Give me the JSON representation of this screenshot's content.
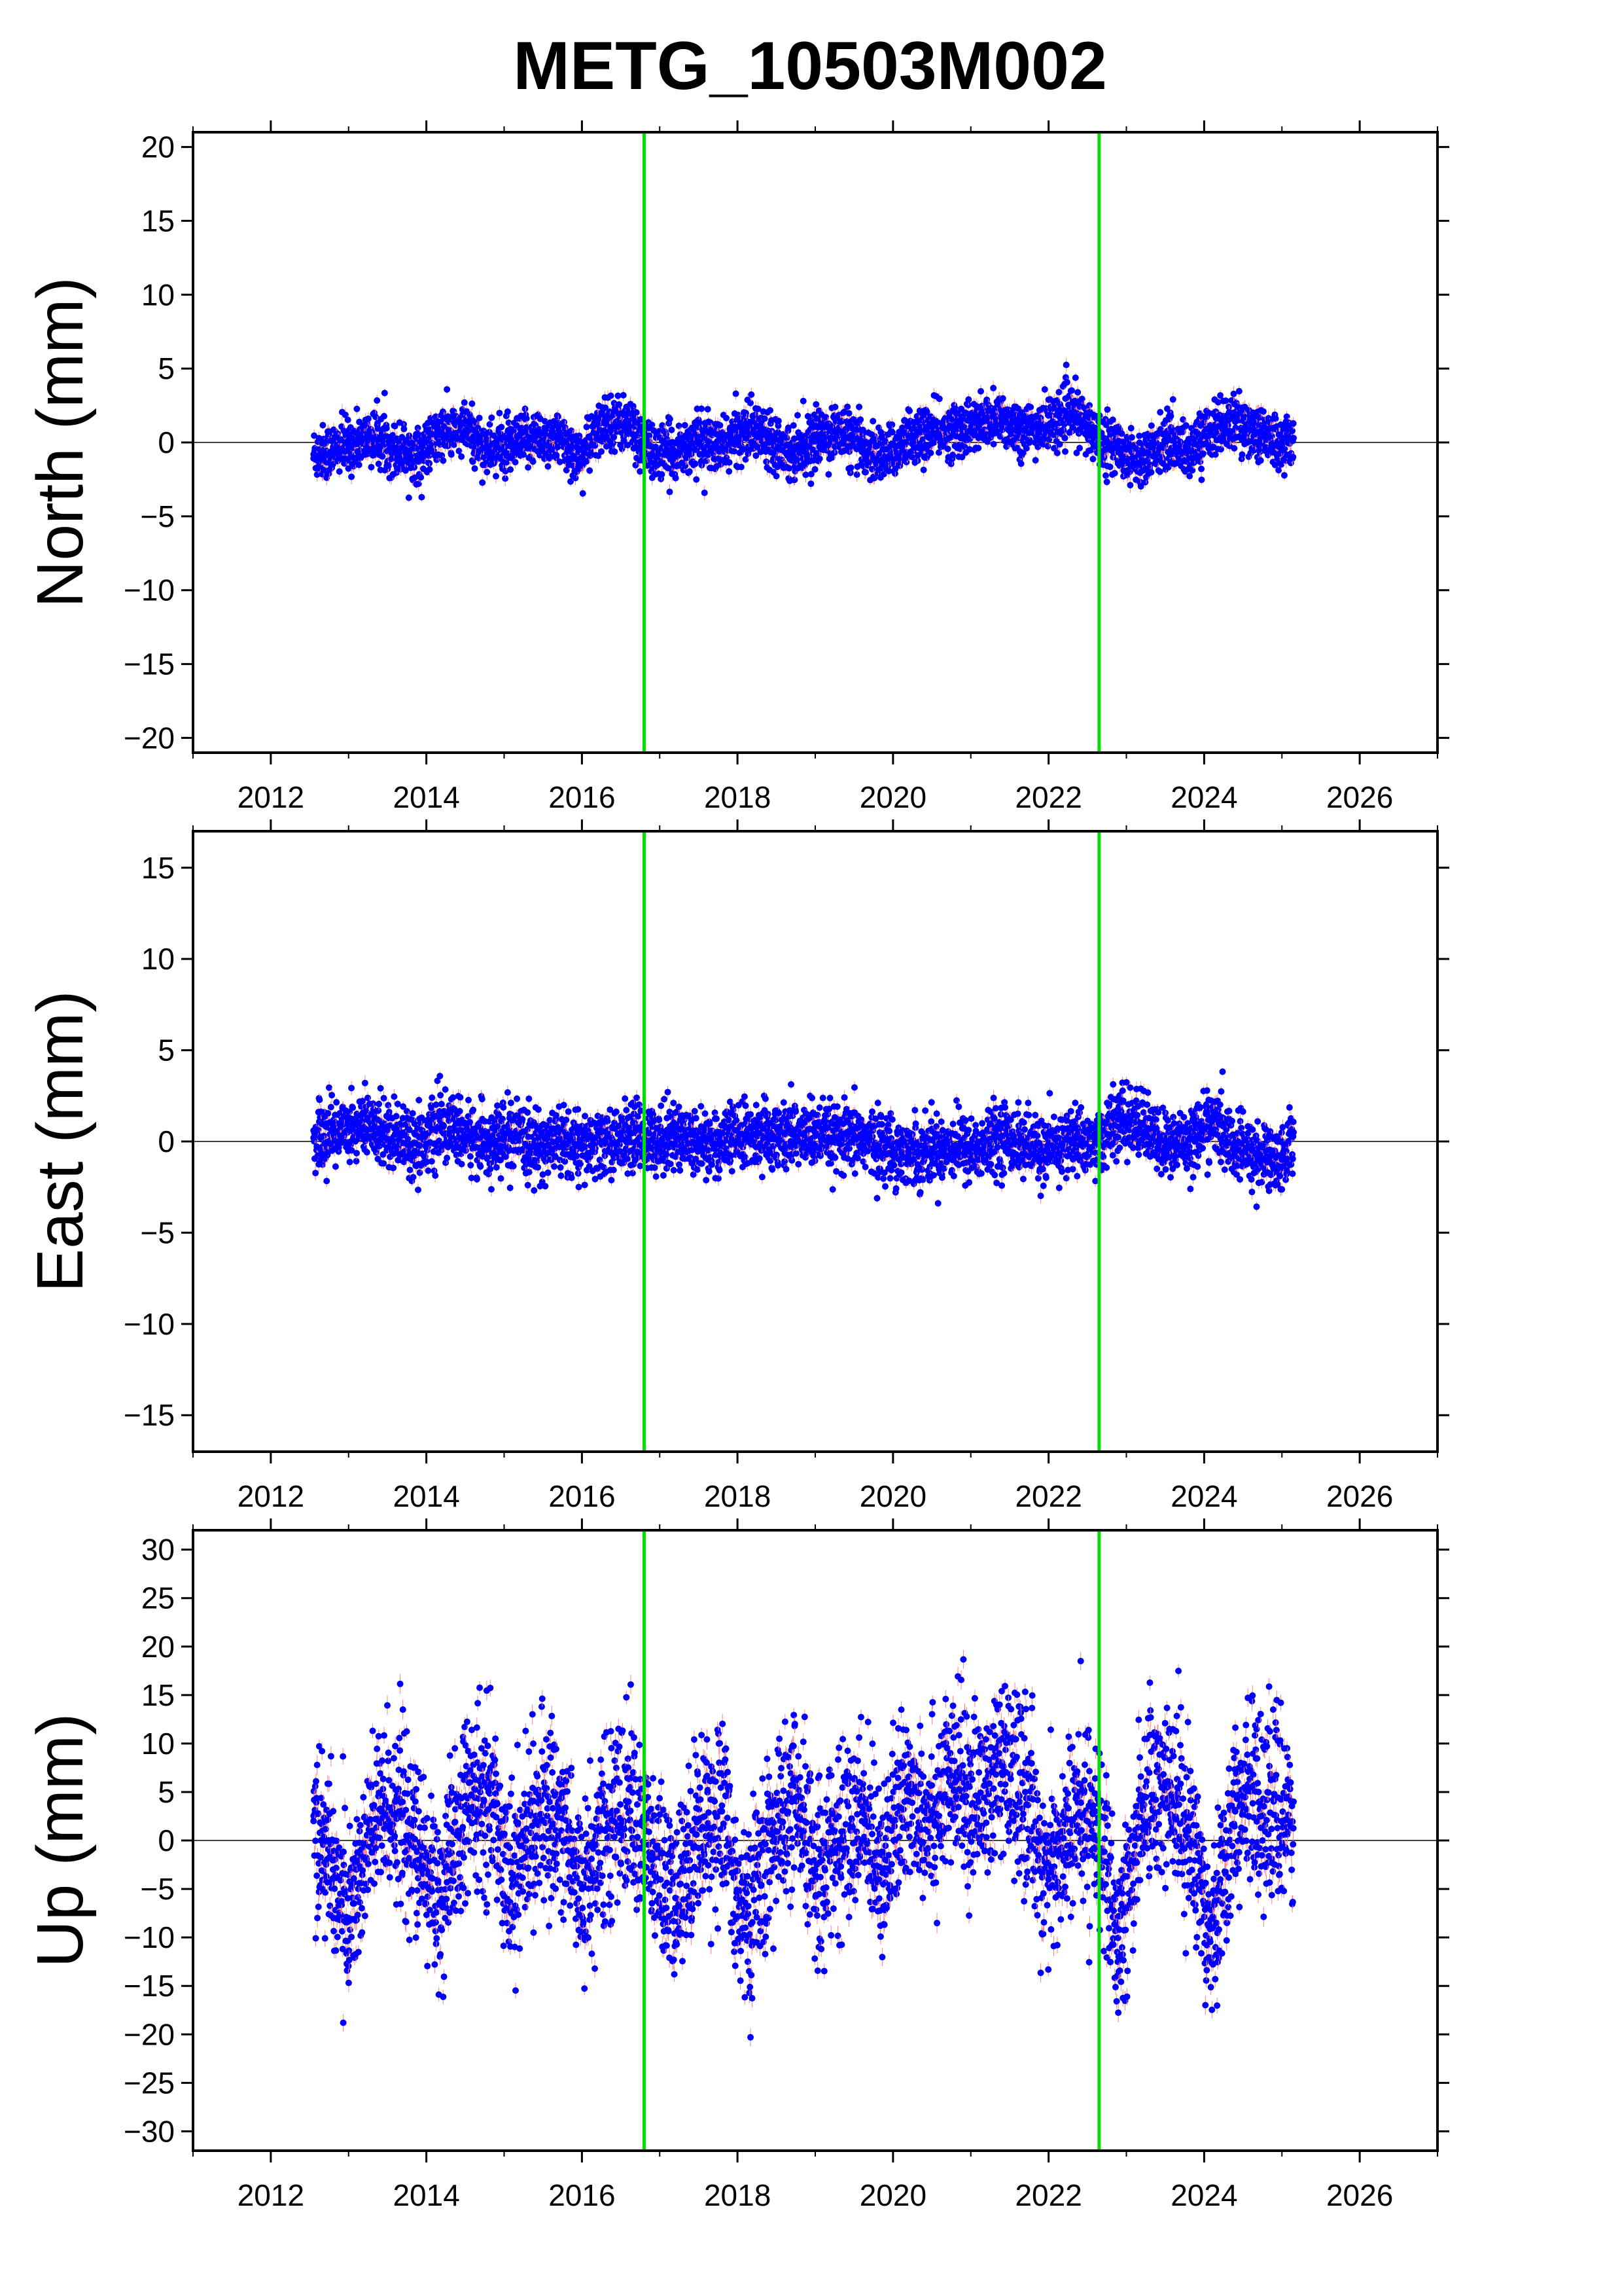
{
  "title": "METG_10503M002",
  "colors": {
    "point": "#0000ff",
    "error_bar": "#ff8080",
    "event_line": "#00e000",
    "zero_line": "#000000",
    "frame": "#000000"
  },
  "chart_data": [
    {
      "type": "scatter",
      "panel": "north",
      "title": "",
      "xlabel": "",
      "ylabel": "North (mm)",
      "xlim": [
        2011.0,
        2027.0
      ],
      "ylim": [
        -21,
        21
      ],
      "x_ticks": [
        2012,
        2014,
        2016,
        2018,
        2020,
        2022,
        2024,
        2026
      ],
      "y_ticks": [
        -20,
        -15,
        -10,
        -5,
        0,
        5,
        10,
        15,
        20
      ],
      "event_lines": [
        2016.8,
        2022.65
      ],
      "grid": false,
      "series": [
        {
          "x": [
            2012.55,
            2012.8,
            2013.0,
            2013.3,
            2013.6,
            2013.9,
            2014.2,
            2014.5,
            2014.8,
            2015.1,
            2015.4,
            2015.7,
            2016.0,
            2016.3,
            2016.6,
            2016.9,
            2017.2,
            2017.5,
            2017.8,
            2018.1,
            2018.4,
            2018.7,
            2019.0,
            2019.3,
            2019.6,
            2019.9,
            2020.2,
            2020.5,
            2020.8,
            2021.1,
            2021.4,
            2021.7,
            2022.0,
            2022.3,
            2022.6,
            2022.9,
            2023.2,
            2023.5,
            2023.8,
            2024.1,
            2024.4,
            2024.7,
            2025.0,
            2025.15
          ],
          "y": [
            -0.8,
            -0.5,
            -0.2,
            0.3,
            -0.4,
            -0.9,
            0.6,
            0.8,
            -0.5,
            -0.3,
            0.4,
            0.2,
            -1.0,
            1.5,
            1.2,
            -0.8,
            -0.6,
            0.1,
            -0.4,
            0.9,
            0.5,
            -0.7,
            0.2,
            0.8,
            -0.3,
            -1.0,
            0.4,
            0.6,
            0.9,
            1.1,
            1.6,
            0.8,
            1.2,
            2.0,
            0.5,
            -0.5,
            -1.2,
            0.2,
            -0.6,
            0.9,
            1.4,
            0.7,
            -0.2,
            0.3
          ]
        }
      ]
    },
    {
      "type": "scatter",
      "panel": "east",
      "title": "",
      "xlabel": "",
      "ylabel": "East (mm)",
      "xlim": [
        2011.0,
        2027.0
      ],
      "ylim": [
        -17,
        17
      ],
      "x_ticks": [
        2012,
        2014,
        2016,
        2018,
        2020,
        2022,
        2024,
        2026
      ],
      "y_ticks": [
        -15,
        -10,
        -5,
        0,
        5,
        10,
        15
      ],
      "event_lines": [
        2016.8,
        2022.65
      ],
      "grid": false,
      "series": [
        {
          "x": [
            2012.55,
            2012.8,
            2013.0,
            2013.3,
            2013.6,
            2013.9,
            2014.2,
            2014.5,
            2014.8,
            2015.1,
            2015.4,
            2015.7,
            2016.0,
            2016.3,
            2016.6,
            2016.9,
            2017.2,
            2017.5,
            2017.8,
            2018.1,
            2018.4,
            2018.7,
            2019.0,
            2019.3,
            2019.6,
            2019.9,
            2020.2,
            2020.5,
            2020.8,
            2021.1,
            2021.4,
            2021.7,
            2022.0,
            2022.3,
            2022.6,
            2022.9,
            2023.2,
            2023.5,
            2023.8,
            2024.1,
            2024.4,
            2024.7,
            2025.0,
            2025.15
          ],
          "y": [
            0.2,
            0.5,
            0.9,
            0.7,
            0.4,
            -0.2,
            0.8,
            0.3,
            -0.1,
            0.2,
            -0.3,
            0.1,
            -0.4,
            0.0,
            0.2,
            0.1,
            0.4,
            0.0,
            -0.1,
            0.3,
            0.2,
            0.4,
            0.3,
            0.0,
            0.2,
            -0.3,
            -0.6,
            -0.4,
            -0.2,
            -0.5,
            0.3,
            -0.2,
            -0.6,
            0.1,
            -0.1,
            1.2,
            0.9,
            -0.3,
            0.1,
            1.1,
            -0.4,
            -0.8,
            -1.0,
            0.5
          ]
        }
      ]
    },
    {
      "type": "scatter",
      "panel": "up",
      "title": "",
      "xlabel": "",
      "ylabel": "Up (mm)",
      "xlim": [
        2011.0,
        2027.0
      ],
      "ylim": [
        -32,
        32
      ],
      "x_ticks": [
        2012,
        2014,
        2016,
        2018,
        2020,
        2022,
        2024,
        2026
      ],
      "y_ticks": [
        -30,
        -25,
        -20,
        -15,
        -10,
        -5,
        0,
        5,
        10,
        15,
        20,
        25,
        30
      ],
      "event_lines": [
        2016.8,
        2022.65
      ],
      "grid": false,
      "series": [
        {
          "x": [
            2012.55,
            2012.8,
            2013.0,
            2013.3,
            2013.6,
            2013.9,
            2014.2,
            2014.5,
            2014.8,
            2015.1,
            2015.4,
            2015.7,
            2016.0,
            2016.3,
            2016.6,
            2016.9,
            2017.2,
            2017.5,
            2017.8,
            2018.1,
            2018.4,
            2018.7,
            2019.0,
            2019.3,
            2019.6,
            2019.9,
            2020.2,
            2020.5,
            2020.8,
            2021.1,
            2021.4,
            2021.7,
            2022.0,
            2022.3,
            2022.6,
            2022.9,
            2023.2,
            2023.5,
            2023.8,
            2024.1,
            2024.4,
            2024.7,
            2025.0,
            2025.15
          ],
          "y": [
            2.0,
            -3.0,
            -8.0,
            1.0,
            4.0,
            -2.0,
            -6.0,
            3.0,
            5.0,
            -4.0,
            2.0,
            3.0,
            -5.0,
            1.0,
            4.0,
            -2.0,
            -7.0,
            2.0,
            3.0,
            -9.0,
            -1.0,
            4.0,
            -3.0,
            0.0,
            2.0,
            -2.0,
            5.0,
            3.0,
            6.0,
            4.0,
            7.0,
            5.0,
            -4.0,
            2.0,
            3.0,
            -12.0,
            4.0,
            6.0,
            1.0,
            -9.0,
            3.0,
            5.0,
            2.0,
            4.0
          ]
        }
      ]
    }
  ]
}
